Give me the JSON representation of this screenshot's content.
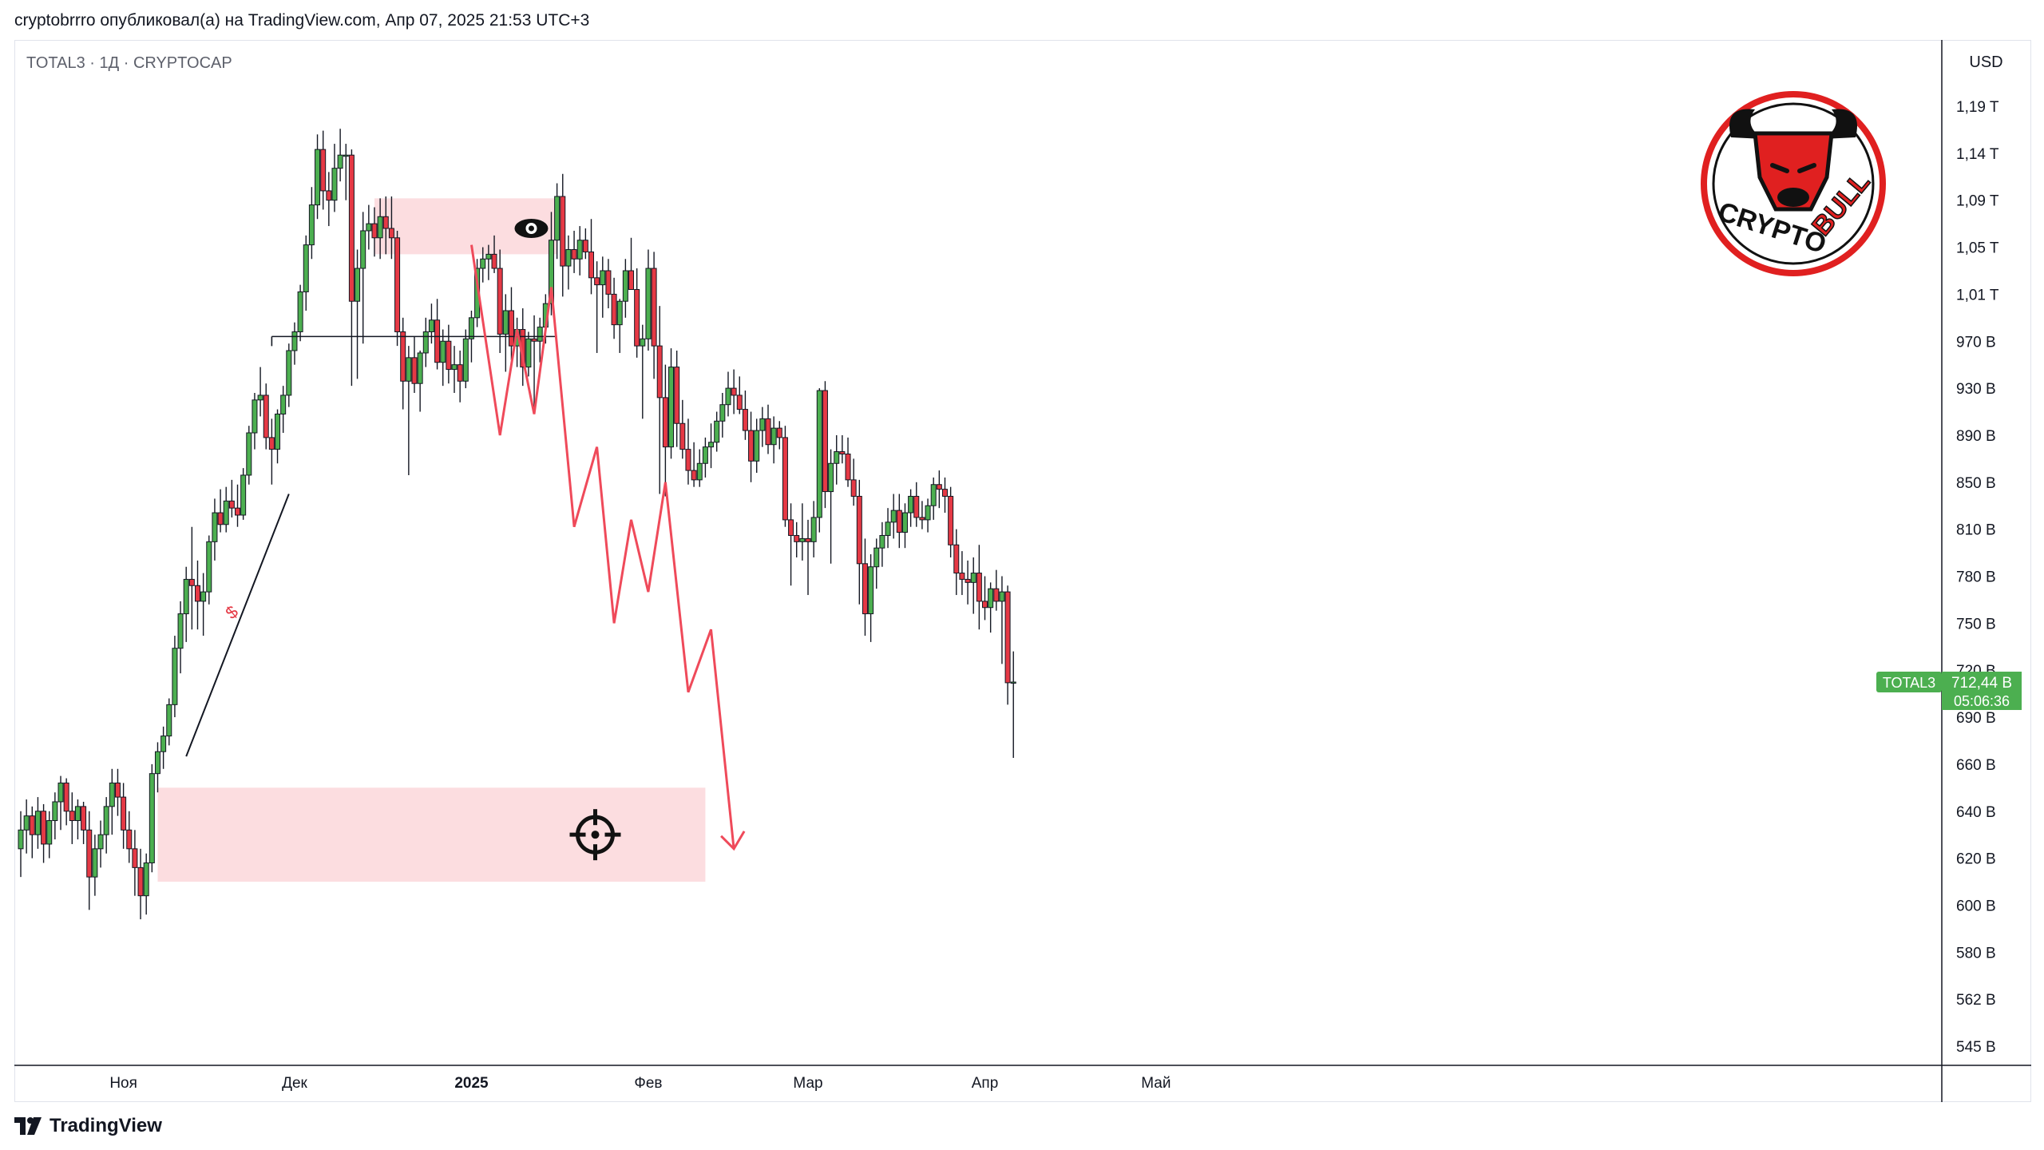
{
  "header": {
    "text": "cryptobrrro опубликовал(а) на TradingView.com, Апр 07, 2025 21:53 UTC+3"
  },
  "symbol_info": "TOTAL3 · 1Д · CRYPTOCAP",
  "currency": "USD",
  "brand": "TradingView",
  "logo_text": [
    "CRYPTO",
    "BULL"
  ],
  "price_label": {
    "symbol": "TOTAL3",
    "value": "712,44 B",
    "countdown": "05:06:36",
    "color": "#4caf50"
  },
  "colors": {
    "up": "#4caf50",
    "down": "#e53945",
    "zone": "#fcdde0",
    "path": "#ef4a5a",
    "logo_red": "#e02020"
  },
  "chart_data": {
    "type": "candlestick",
    "y_ticks": [
      {
        "v": 545,
        "label": "545 B"
      },
      {
        "v": 562,
        "label": "562 B"
      },
      {
        "v": 580,
        "label": "580 B"
      },
      {
        "v": 600,
        "label": "600 B"
      },
      {
        "v": 620,
        "label": "620 B"
      },
      {
        "v": 640,
        "label": "640 B"
      },
      {
        "v": 660,
        "label": "660 B"
      },
      {
        "v": 690,
        "label": "690 B"
      },
      {
        "v": 720,
        "label": "720 B"
      },
      {
        "v": 750,
        "label": "750 B"
      },
      {
        "v": 780,
        "label": "780 B"
      },
      {
        "v": 810,
        "label": "810 B"
      },
      {
        "v": 850,
        "label": "850 B"
      },
      {
        "v": 890,
        "label": "890 B"
      },
      {
        "v": 930,
        "label": "930 B"
      },
      {
        "v": 970,
        "label": "970 B"
      },
      {
        "v": 1010,
        "label": "1,01 T"
      },
      {
        "v": 1050,
        "label": "1,05 T"
      },
      {
        "v": 1090,
        "label": "1,09 T"
      },
      {
        "v": 1140,
        "label": "1,14 T"
      },
      {
        "v": 1190,
        "label": "1,19 T"
      }
    ],
    "x_ticks": [
      {
        "day": 18,
        "label": "Ноя",
        "bold": false
      },
      {
        "day": 48,
        "label": "Дек",
        "bold": false
      },
      {
        "day": 79,
        "label": "2025",
        "bold": true
      },
      {
        "day": 110,
        "label": "Фев",
        "bold": false
      },
      {
        "day": 138,
        "label": "Мар",
        "bold": false
      },
      {
        "day": 169,
        "label": "Апр",
        "bold": false
      },
      {
        "day": 199,
        "label": "Май",
        "bold": false
      }
    ],
    "candles": [
      {
        "o": 624,
        "h": 640,
        "l": 612,
        "c": 632
      },
      {
        "o": 632,
        "h": 645,
        "l": 622,
        "c": 638
      },
      {
        "o": 638,
        "h": 642,
        "l": 620,
        "c": 630
      },
      {
        "o": 630,
        "h": 646,
        "l": 624,
        "c": 640
      },
      {
        "o": 640,
        "h": 643,
        "l": 618,
        "c": 626
      },
      {
        "o": 626,
        "h": 640,
        "l": 620,
        "c": 636
      },
      {
        "o": 636,
        "h": 648,
        "l": 628,
        "c": 644
      },
      {
        "o": 644,
        "h": 655,
        "l": 632,
        "c": 652
      },
      {
        "o": 652,
        "h": 654,
        "l": 634,
        "c": 640
      },
      {
        "o": 640,
        "h": 648,
        "l": 626,
        "c": 636
      },
      {
        "o": 636,
        "h": 645,
        "l": 628,
        "c": 642
      },
      {
        "o": 642,
        "h": 644,
        "l": 626,
        "c": 632
      },
      {
        "o": 632,
        "h": 640,
        "l": 598,
        "c": 612
      },
      {
        "o": 612,
        "h": 630,
        "l": 604,
        "c": 624
      },
      {
        "o": 624,
        "h": 636,
        "l": 616,
        "c": 630
      },
      {
        "o": 630,
        "h": 646,
        "l": 622,
        "c": 642
      },
      {
        "o": 642,
        "h": 658,
        "l": 630,
        "c": 652
      },
      {
        "o": 652,
        "h": 658,
        "l": 638,
        "c": 646
      },
      {
        "o": 646,
        "h": 652,
        "l": 624,
        "c": 632
      },
      {
        "o": 632,
        "h": 640,
        "l": 618,
        "c": 624
      },
      {
        "o": 624,
        "h": 632,
        "l": 604,
        "c": 616
      },
      {
        "o": 616,
        "h": 624,
        "l": 594,
        "c": 604
      },
      {
        "o": 604,
        "h": 622,
        "l": 596,
        "c": 618
      },
      {
        "o": 618,
        "h": 660,
        "l": 614,
        "c": 656
      },
      {
        "o": 656,
        "h": 674,
        "l": 648,
        "c": 668
      },
      {
        "o": 668,
        "h": 684,
        "l": 658,
        "c": 678
      },
      {
        "o": 678,
        "h": 702,
        "l": 672,
        "c": 698
      },
      {
        "o": 698,
        "h": 742,
        "l": 690,
        "c": 734
      },
      {
        "o": 734,
        "h": 764,
        "l": 718,
        "c": 756
      },
      {
        "o": 756,
        "h": 786,
        "l": 738,
        "c": 778
      },
      {
        "o": 778,
        "h": 812,
        "l": 746,
        "c": 774
      },
      {
        "o": 774,
        "h": 790,
        "l": 746,
        "c": 764
      },
      {
        "o": 764,
        "h": 782,
        "l": 742,
        "c": 770
      },
      {
        "o": 770,
        "h": 806,
        "l": 762,
        "c": 802
      },
      {
        "o": 802,
        "h": 836,
        "l": 790,
        "c": 824
      },
      {
        "o": 824,
        "h": 844,
        "l": 808,
        "c": 814
      },
      {
        "o": 814,
        "h": 846,
        "l": 808,
        "c": 834
      },
      {
        "o": 834,
        "h": 852,
        "l": 820,
        "c": 828
      },
      {
        "o": 828,
        "h": 848,
        "l": 812,
        "c": 822
      },
      {
        "o": 822,
        "h": 862,
        "l": 818,
        "c": 856
      },
      {
        "o": 856,
        "h": 898,
        "l": 848,
        "c": 892
      },
      {
        "o": 892,
        "h": 926,
        "l": 878,
        "c": 920
      },
      {
        "o": 920,
        "h": 948,
        "l": 906,
        "c": 924
      },
      {
        "o": 924,
        "h": 934,
        "l": 878,
        "c": 888
      },
      {
        "o": 888,
        "h": 904,
        "l": 848,
        "c": 878
      },
      {
        "o": 878,
        "h": 912,
        "l": 866,
        "c": 908
      },
      {
        "o": 908,
        "h": 932,
        "l": 892,
        "c": 924
      },
      {
        "o": 924,
        "h": 968,
        "l": 914,
        "c": 962
      },
      {
        "o": 962,
        "h": 986,
        "l": 950,
        "c": 978
      },
      {
        "o": 978,
        "h": 1018,
        "l": 970,
        "c": 1012
      },
      {
        "o": 1012,
        "h": 1060,
        "l": 996,
        "c": 1052
      },
      {
        "o": 1052,
        "h": 1104,
        "l": 1040,
        "c": 1086
      },
      {
        "o": 1086,
        "h": 1160,
        "l": 1074,
        "c": 1144
      },
      {
        "o": 1144,
        "h": 1164,
        "l": 1082,
        "c": 1100
      },
      {
        "o": 1100,
        "h": 1120,
        "l": 1068,
        "c": 1090
      },
      {
        "o": 1090,
        "h": 1150,
        "l": 1080,
        "c": 1124
      },
      {
        "o": 1124,
        "h": 1166,
        "l": 1110,
        "c": 1138
      },
      {
        "o": 1138,
        "h": 1150,
        "l": 1090,
        "c": 1138
      },
      {
        "o": 1138,
        "h": 1144,
        "l": 932,
        "c": 1004
      },
      {
        "o": 1004,
        "h": 1048,
        "l": 938,
        "c": 1032
      },
      {
        "o": 1032,
        "h": 1080,
        "l": 968,
        "c": 1064
      },
      {
        "o": 1064,
        "h": 1086,
        "l": 1048,
        "c": 1070
      },
      {
        "o": 1070,
        "h": 1084,
        "l": 1042,
        "c": 1058
      },
      {
        "o": 1058,
        "h": 1092,
        "l": 1040,
        "c": 1076
      },
      {
        "o": 1076,
        "h": 1094,
        "l": 1044,
        "c": 1066
      },
      {
        "o": 1066,
        "h": 1094,
        "l": 1040,
        "c": 1058
      },
      {
        "o": 1058,
        "h": 1064,
        "l": 966,
        "c": 978
      },
      {
        "o": 978,
        "h": 990,
        "l": 912,
        "c": 936
      },
      {
        "o": 936,
        "h": 966,
        "l": 856,
        "c": 956
      },
      {
        "o": 956,
        "h": 974,
        "l": 926,
        "c": 934
      },
      {
        "o": 934,
        "h": 962,
        "l": 910,
        "c": 960
      },
      {
        "o": 960,
        "h": 990,
        "l": 948,
        "c": 978
      },
      {
        "o": 978,
        "h": 1002,
        "l": 968,
        "c": 988
      },
      {
        "o": 988,
        "h": 1006,
        "l": 946,
        "c": 952
      },
      {
        "o": 952,
        "h": 980,
        "l": 932,
        "c": 970
      },
      {
        "o": 970,
        "h": 984,
        "l": 934,
        "c": 946
      },
      {
        "o": 946,
        "h": 966,
        "l": 926,
        "c": 950
      },
      {
        "o": 950,
        "h": 962,
        "l": 918,
        "c": 936
      },
      {
        "o": 936,
        "h": 980,
        "l": 930,
        "c": 972
      },
      {
        "o": 972,
        "h": 996,
        "l": 952,
        "c": 990
      },
      {
        "o": 990,
        "h": 1040,
        "l": 982,
        "c": 1032
      },
      {
        "o": 1032,
        "h": 1050,
        "l": 1020,
        "c": 1040
      },
      {
        "o": 1040,
        "h": 1052,
        "l": 1022,
        "c": 1044
      },
      {
        "o": 1044,
        "h": 1060,
        "l": 1028,
        "c": 1032
      },
      {
        "o": 1032,
        "h": 1048,
        "l": 960,
        "c": 976
      },
      {
        "o": 976,
        "h": 1010,
        "l": 944,
        "c": 996
      },
      {
        "o": 996,
        "h": 1016,
        "l": 954,
        "c": 966
      },
      {
        "o": 966,
        "h": 990,
        "l": 948,
        "c": 980
      },
      {
        "o": 980,
        "h": 998,
        "l": 932,
        "c": 948
      },
      {
        "o": 948,
        "h": 978,
        "l": 940,
        "c": 972
      },
      {
        "o": 972,
        "h": 992,
        "l": 912,
        "c": 970
      },
      {
        "o": 970,
        "h": 990,
        "l": 952,
        "c": 982
      },
      {
        "o": 982,
        "h": 1010,
        "l": 968,
        "c": 1002
      },
      {
        "o": 1002,
        "h": 1080,
        "l": 992,
        "c": 1056
      },
      {
        "o": 1056,
        "h": 1108,
        "l": 1040,
        "c": 1094
      },
      {
        "o": 1094,
        "h": 1118,
        "l": 1008,
        "c": 1034
      },
      {
        "o": 1034,
        "h": 1060,
        "l": 1014,
        "c": 1048
      },
      {
        "o": 1048,
        "h": 1064,
        "l": 1028,
        "c": 1040
      },
      {
        "o": 1040,
        "h": 1068,
        "l": 1026,
        "c": 1056
      },
      {
        "o": 1056,
        "h": 1066,
        "l": 1040,
        "c": 1046
      },
      {
        "o": 1046,
        "h": 1074,
        "l": 1010,
        "c": 1024
      },
      {
        "o": 1024,
        "h": 1038,
        "l": 960,
        "c": 1018
      },
      {
        "o": 1018,
        "h": 1042,
        "l": 990,
        "c": 1030
      },
      {
        "o": 1030,
        "h": 1040,
        "l": 998,
        "c": 1010
      },
      {
        "o": 1010,
        "h": 1024,
        "l": 972,
        "c": 984
      },
      {
        "o": 984,
        "h": 1006,
        "l": 960,
        "c": 1004
      },
      {
        "o": 1004,
        "h": 1040,
        "l": 990,
        "c": 1030
      },
      {
        "o": 1030,
        "h": 1058,
        "l": 1018,
        "c": 1014
      },
      {
        "o": 1014,
        "h": 1032,
        "l": 956,
        "c": 966
      },
      {
        "o": 966,
        "h": 984,
        "l": 904,
        "c": 972
      },
      {
        "o": 972,
        "h": 1048,
        "l": 962,
        "c": 1032
      },
      {
        "o": 1032,
        "h": 1046,
        "l": 938,
        "c": 966
      },
      {
        "o": 966,
        "h": 1000,
        "l": 840,
        "c": 922
      },
      {
        "o": 922,
        "h": 950,
        "l": 838,
        "c": 880
      },
      {
        "o": 880,
        "h": 964,
        "l": 870,
        "c": 948
      },
      {
        "o": 948,
        "h": 962,
        "l": 880,
        "c": 900
      },
      {
        "o": 900,
        "h": 920,
        "l": 870,
        "c": 878
      },
      {
        "o": 878,
        "h": 904,
        "l": 848,
        "c": 860
      },
      {
        "o": 860,
        "h": 884,
        "l": 846,
        "c": 852
      },
      {
        "o": 852,
        "h": 878,
        "l": 846,
        "c": 866
      },
      {
        "o": 866,
        "h": 888,
        "l": 854,
        "c": 880
      },
      {
        "o": 880,
        "h": 900,
        "l": 862,
        "c": 884
      },
      {
        "o": 884,
        "h": 910,
        "l": 876,
        "c": 902
      },
      {
        "o": 902,
        "h": 926,
        "l": 888,
        "c": 916
      },
      {
        "o": 916,
        "h": 944,
        "l": 906,
        "c": 930
      },
      {
        "o": 930,
        "h": 946,
        "l": 908,
        "c": 924
      },
      {
        "o": 924,
        "h": 940,
        "l": 908,
        "c": 912
      },
      {
        "o": 912,
        "h": 928,
        "l": 886,
        "c": 894
      },
      {
        "o": 894,
        "h": 910,
        "l": 850,
        "c": 868
      },
      {
        "o": 868,
        "h": 904,
        "l": 858,
        "c": 894
      },
      {
        "o": 894,
        "h": 914,
        "l": 880,
        "c": 904
      },
      {
        "o": 904,
        "h": 916,
        "l": 874,
        "c": 882
      },
      {
        "o": 882,
        "h": 906,
        "l": 866,
        "c": 896
      },
      {
        "o": 896,
        "h": 902,
        "l": 878,
        "c": 888
      },
      {
        "o": 888,
        "h": 898,
        "l": 812,
        "c": 818
      },
      {
        "o": 818,
        "h": 832,
        "l": 774,
        "c": 806
      },
      {
        "o": 806,
        "h": 816,
        "l": 792,
        "c": 802
      },
      {
        "o": 802,
        "h": 832,
        "l": 790,
        "c": 804
      },
      {
        "o": 804,
        "h": 818,
        "l": 768,
        "c": 802
      },
      {
        "o": 802,
        "h": 834,
        "l": 792,
        "c": 820
      },
      {
        "o": 820,
        "h": 930,
        "l": 808,
        "c": 928
      },
      {
        "o": 928,
        "h": 936,
        "l": 828,
        "c": 842
      },
      {
        "o": 842,
        "h": 878,
        "l": 788,
        "c": 866
      },
      {
        "o": 866,
        "h": 890,
        "l": 848,
        "c": 876
      },
      {
        "o": 876,
        "h": 890,
        "l": 866,
        "c": 874
      },
      {
        "o": 874,
        "h": 888,
        "l": 846,
        "c": 852
      },
      {
        "o": 852,
        "h": 870,
        "l": 830,
        "c": 838
      },
      {
        "o": 838,
        "h": 852,
        "l": 762,
        "c": 788
      },
      {
        "o": 788,
        "h": 804,
        "l": 742,
        "c": 756
      },
      {
        "o": 756,
        "h": 794,
        "l": 738,
        "c": 786
      },
      {
        "o": 786,
        "h": 804,
        "l": 772,
        "c": 798
      },
      {
        "o": 798,
        "h": 816,
        "l": 786,
        "c": 806
      },
      {
        "o": 806,
        "h": 828,
        "l": 798,
        "c": 816
      },
      {
        "o": 816,
        "h": 840,
        "l": 804,
        "c": 826
      },
      {
        "o": 826,
        "h": 840,
        "l": 798,
        "c": 808
      },
      {
        "o": 808,
        "h": 832,
        "l": 798,
        "c": 824
      },
      {
        "o": 824,
        "h": 844,
        "l": 812,
        "c": 838
      },
      {
        "o": 838,
        "h": 850,
        "l": 812,
        "c": 820
      },
      {
        "o": 820,
        "h": 834,
        "l": 810,
        "c": 818
      },
      {
        "o": 818,
        "h": 836,
        "l": 808,
        "c": 830
      },
      {
        "o": 830,
        "h": 854,
        "l": 818,
        "c": 848
      },
      {
        "o": 848,
        "h": 860,
        "l": 828,
        "c": 844
      },
      {
        "o": 844,
        "h": 854,
        "l": 824,
        "c": 838
      },
      {
        "o": 838,
        "h": 846,
        "l": 792,
        "c": 800
      },
      {
        "o": 800,
        "h": 810,
        "l": 768,
        "c": 782
      },
      {
        "o": 782,
        "h": 796,
        "l": 768,
        "c": 778
      },
      {
        "o": 778,
        "h": 790,
        "l": 762,
        "c": 776
      },
      {
        "o": 776,
        "h": 792,
        "l": 756,
        "c": 782
      },
      {
        "o": 782,
        "h": 800,
        "l": 746,
        "c": 764
      },
      {
        "o": 764,
        "h": 780,
        "l": 752,
        "c": 760
      },
      {
        "o": 760,
        "h": 776,
        "l": 744,
        "c": 772
      },
      {
        "o": 772,
        "h": 784,
        "l": 758,
        "c": 764
      },
      {
        "o": 764,
        "h": 780,
        "l": 724,
        "c": 770
      },
      {
        "o": 770,
        "h": 774,
        "l": 698,
        "c": 712
      },
      {
        "o": 712,
        "h": 732,
        "l": 664,
        "c": 712.44
      }
    ],
    "h_line": {
      "value": 974,
      "from_day": 44,
      "to_day": 94
    },
    "zones": [
      {
        "from_day": 62,
        "to_day": 94,
        "top": 1092,
        "bottom": 1044
      },
      {
        "from_day": 24,
        "to_day": 120,
        "top": 650,
        "bottom": 610
      }
    ],
    "projection_path": [
      [
        79,
        1052
      ],
      [
        84,
        890
      ],
      [
        87,
        980
      ],
      [
        90,
        908
      ],
      [
        93,
        1016
      ],
      [
        97,
        812
      ],
      [
        101,
        880
      ],
      [
        104,
        750
      ],
      [
        107,
        818
      ],
      [
        110,
        770
      ],
      [
        113,
        850
      ],
      [
        117,
        706
      ],
      [
        121,
        746
      ],
      [
        125,
        624
      ]
    ],
    "trendline": {
      "from": [
        29,
        665
      ],
      "to": [
        47,
        840
      ],
      "label": "$"
    },
    "current": {
      "value": 712.44
    }
  }
}
